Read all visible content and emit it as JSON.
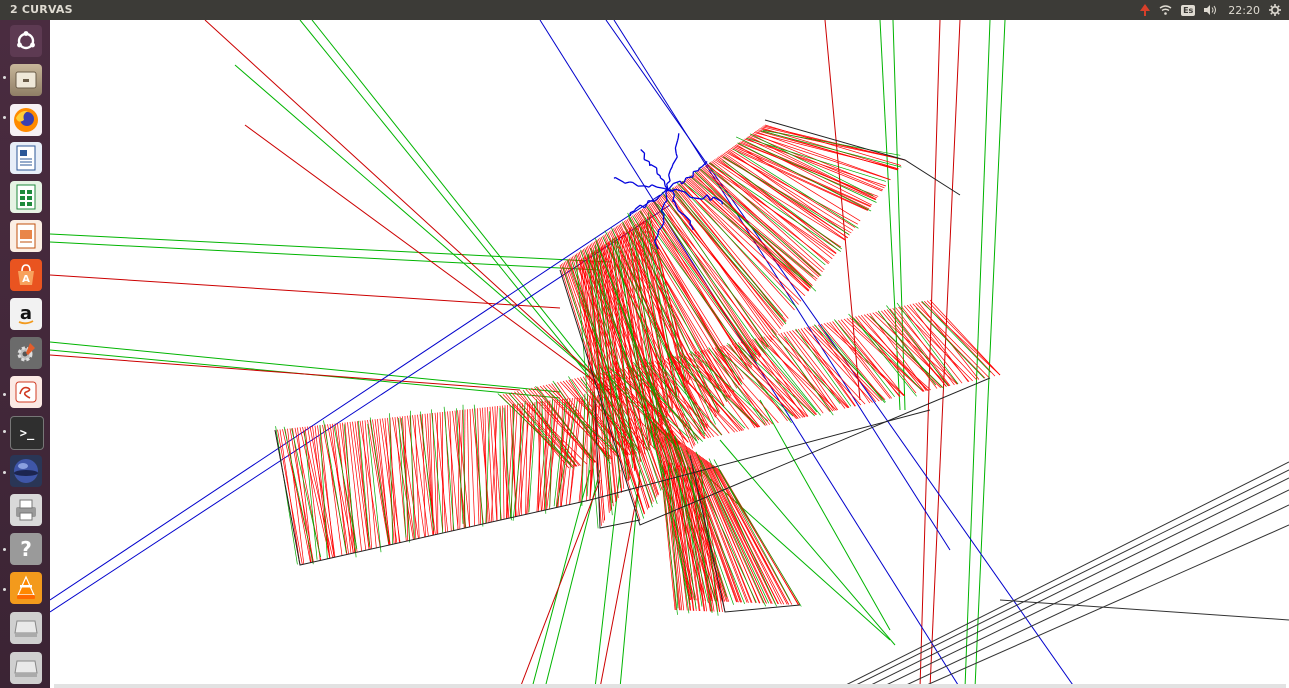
{
  "window": {
    "title": "2 CURVAS"
  },
  "panel": {
    "keyboard_layout": "Es",
    "clock": "22:20",
    "colors": {
      "bar": "#3c3b37",
      "text": "#dfdbd2"
    }
  },
  "launcher": {
    "items": [
      {
        "name": "ubuntu-dash-icon"
      },
      {
        "name": "files-icon"
      },
      {
        "name": "firefox-icon"
      },
      {
        "name": "writer-icon"
      },
      {
        "name": "calc-icon"
      },
      {
        "name": "impress-icon"
      },
      {
        "name": "software-center-icon"
      },
      {
        "name": "amazon-icon",
        "glyph": "a"
      },
      {
        "name": "system-settings-icon"
      },
      {
        "name": "app-icon"
      },
      {
        "name": "terminal-icon",
        "glyph": ">_"
      },
      {
        "name": "sphere-app-icon"
      },
      {
        "name": "printer-icon"
      },
      {
        "name": "help-icon",
        "glyph": "?"
      },
      {
        "name": "vlc-icon"
      },
      {
        "name": "drive-icon"
      },
      {
        "name": "drive-icon-2"
      }
    ]
  },
  "scene": {
    "colors": {
      "red": "#ff0000",
      "green": "#00b400",
      "blue": "#0000cc",
      "dark": "#222222"
    }
  }
}
